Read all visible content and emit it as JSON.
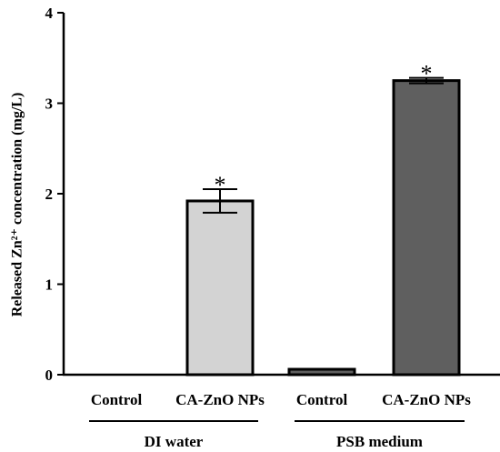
{
  "chart_data": {
    "type": "bar",
    "title": "",
    "xlabel": "",
    "ylabel": "Released Zn²⁺ concentration (mg/L)",
    "ylim": [
      0,
      4
    ],
    "yticks": [
      "0",
      "1",
      "2",
      "3",
      "4"
    ],
    "categories": [
      "Control",
      "CA-ZnO NPs",
      "Control",
      "CA-ZnO NPs"
    ],
    "groups": [
      {
        "label": "DI water",
        "categories": [
          0,
          1
        ]
      },
      {
        "label": "PSB medium",
        "categories": [
          2,
          3
        ]
      }
    ],
    "values": [
      0.0,
      1.92,
      0.06,
      3.25
    ],
    "errors": [
      0.0,
      0.13,
      0.0,
      0.03
    ],
    "significance": [
      "",
      "*",
      "",
      "*"
    ],
    "colors": [
      "#d3d3d3",
      "#d3d3d3",
      "#5f5f5f",
      "#5f5f5f"
    ],
    "grid": false,
    "legend": "none"
  }
}
